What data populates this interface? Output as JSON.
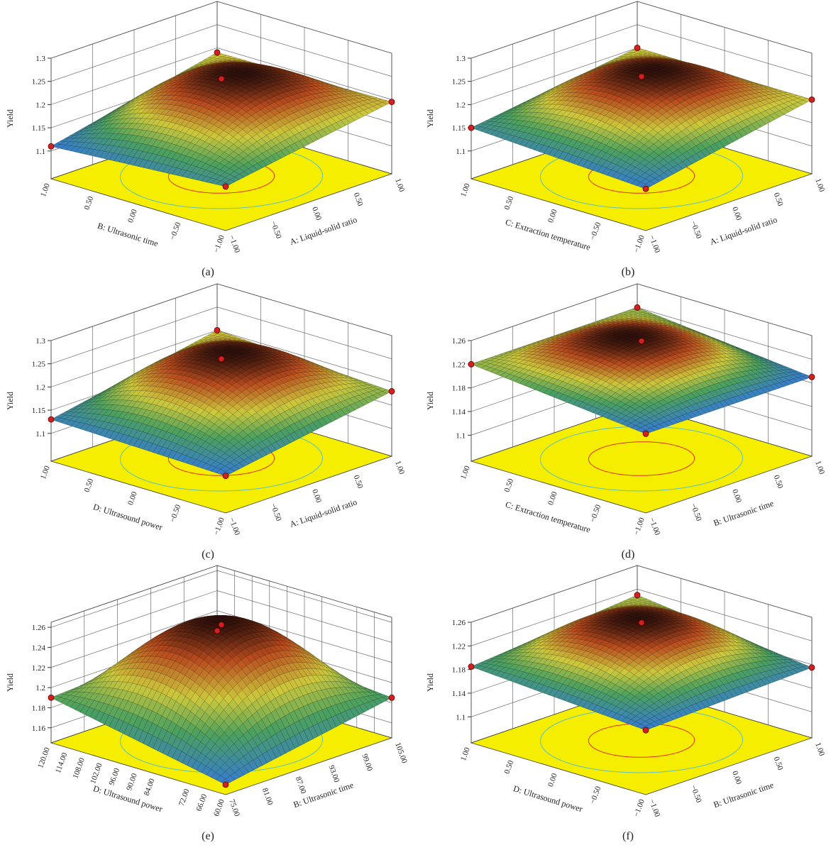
{
  "chart_data": [
    {
      "type": "surface3d",
      "label": "(a)",
      "x_label": "A: Liquid-solid ratio",
      "y_label": "B: Ultrasonic time",
      "z_label": "Yield",
      "xlim": [
        -1,
        1
      ],
      "xticks": [
        {
          "value": -1,
          "label": "−1.00"
        },
        {
          "value": -0.5,
          "label": "−0.50"
        },
        {
          "value": 0,
          "label": "0.00"
        },
        {
          "value": 0.5,
          "label": "0.50"
        },
        {
          "value": 1,
          "label": "1.00"
        }
      ],
      "ylim": [
        -1,
        1
      ],
      "yticks": [
        {
          "value": -1,
          "label": "−1.00"
        },
        {
          "value": -0.5,
          "label": "−0.50"
        },
        {
          "value": 0,
          "label": "0.00"
        },
        {
          "value": 0.5,
          "label": "0.50"
        },
        {
          "value": 1,
          "label": "1.00"
        }
      ],
      "zlim": [
        1.04,
        1.3
      ],
      "zticks": [
        1.1,
        1.15,
        1.2,
        1.25,
        1.3
      ],
      "points": {
        "x": [
          -1,
          -1,
          1,
          1,
          0
        ],
        "y": [
          1,
          -1,
          -1,
          1,
          0
        ],
        "z": [
          1.11,
          1.135,
          1.195,
          1.19,
          1.25
        ]
      }
    },
    {
      "type": "surface3d",
      "label": "(b)",
      "x_label": "A: Liquid-solid ratio",
      "y_label": "C: Extraction temperature",
      "z_label": "Yield",
      "xlim": [
        -1,
        1
      ],
      "xticks": [
        {
          "value": -1,
          "label": "−1.00"
        },
        {
          "value": -0.5,
          "label": "−0.50"
        },
        {
          "value": 0,
          "label": "0.00"
        },
        {
          "value": 0.5,
          "label": "0.50"
        },
        {
          "value": 1,
          "label": "1.00"
        }
      ],
      "ylim": [
        -1,
        1
      ],
      "yticks": [
        {
          "value": -1,
          "label": "−1.00"
        },
        {
          "value": -0.5,
          "label": "−0.50"
        },
        {
          "value": 0,
          "label": "0.00"
        },
        {
          "value": 0.5,
          "label": "0.50"
        },
        {
          "value": 1,
          "label": "1.00"
        }
      ],
      "zlim": [
        1.04,
        1.3
      ],
      "zticks": [
        1.1,
        1.15,
        1.2,
        1.25,
        1.3
      ],
      "points": {
        "x": [
          -1,
          -1,
          1,
          1,
          0
        ],
        "y": [
          1,
          -1,
          -1,
          1,
          0
        ],
        "z": [
          1.15,
          1.13,
          1.2,
          1.2,
          1.255
        ]
      }
    },
    {
      "type": "surface3d",
      "label": "(c)",
      "x_label": "A: Liquid-solid ratio",
      "y_label": "D: Ultrasound power",
      "z_label": "Yield",
      "xlim": [
        -1,
        1
      ],
      "xticks": [
        {
          "value": -1,
          "label": "−1.00"
        },
        {
          "value": -0.5,
          "label": "−0.50"
        },
        {
          "value": 0,
          "label": "0.00"
        },
        {
          "value": 0.5,
          "label": "0.50"
        },
        {
          "value": 1,
          "label": "1.00"
        }
      ],
      "ylim": [
        -1,
        1
      ],
      "yticks": [
        {
          "value": -1,
          "label": "−1.00"
        },
        {
          "value": -0.5,
          "label": "−0.50"
        },
        {
          "value": 0,
          "label": "0.00"
        },
        {
          "value": 0.5,
          "label": "0.50"
        },
        {
          "value": 1,
          "label": "1.00"
        }
      ],
      "zlim": [
        1.04,
        1.3
      ],
      "zticks": [
        1.1,
        1.15,
        1.2,
        1.25,
        1.3
      ],
      "points": {
        "x": [
          -1,
          -1,
          1,
          1,
          0
        ],
        "y": [
          1,
          -1,
          -1,
          1,
          0
        ],
        "z": [
          1.13,
          1.12,
          1.18,
          1.2,
          1.255
        ]
      }
    },
    {
      "type": "surface3d",
      "label": "(d)",
      "x_label": "B: Ultrasonic time",
      "y_label": "C: Extraction temperature",
      "z_label": "Yield",
      "xlim": [
        -1,
        1
      ],
      "xticks": [
        {
          "value": -1,
          "label": "−1.00"
        },
        {
          "value": -0.5,
          "label": "−0.50"
        },
        {
          "value": 0,
          "label": "0.00"
        },
        {
          "value": 0.5,
          "label": "0.50"
        },
        {
          "value": 1,
          "label": "1.00"
        }
      ],
      "ylim": [
        -1,
        1
      ],
      "yticks": [
        {
          "value": -1,
          "label": "−1.00"
        },
        {
          "value": -0.5,
          "label": "−0.50"
        },
        {
          "value": 0,
          "label": "0.00"
        },
        {
          "value": 0.5,
          "label": "0.50"
        },
        {
          "value": 1,
          "label": "1.00"
        }
      ],
      "zlim": [
        1.056,
        1.26
      ],
      "zticks": [
        1.1,
        1.14,
        1.18,
        1.22,
        1.26
      ],
      "points": {
        "x": [
          -1,
          -1,
          1,
          1,
          0
        ],
        "y": [
          1,
          -1,
          -1,
          1,
          0
        ],
        "z": [
          1.22,
          1.19,
          1.19,
          1.22,
          1.255
        ]
      }
    },
    {
      "type": "surface3d",
      "label": "(e)",
      "x_label": "B: Ultrasonic time",
      "y_label": "D: Ultrasound power",
      "z_label": "Yield",
      "xlim": [
        75,
        105
      ],
      "xticks": [
        {
          "value": 75,
          "label": "75.00"
        },
        {
          "value": 81,
          "label": "81.00"
        },
        {
          "value": 87,
          "label": "87.00"
        },
        {
          "value": 93,
          "label": "93.00"
        },
        {
          "value": 99,
          "label": "99.00"
        },
        {
          "value": 105,
          "label": "105.00"
        }
      ],
      "ylim": [
        60,
        120
      ],
      "yticks": [
        {
          "value": 60,
          "label": "60.00"
        },
        {
          "value": 66,
          "label": "66.00"
        },
        {
          "value": 72,
          "label": "72.00"
        },
        {
          "value": 84,
          "label": "84.00"
        },
        {
          "value": 90,
          "label": "90.00"
        },
        {
          "value": 96,
          "label": "96.00"
        },
        {
          "value": 102,
          "label": "102.00"
        },
        {
          "value": 108,
          "label": "108.00"
        },
        {
          "value": 114,
          "label": "114.00"
        },
        {
          "value": 120,
          "label": "120.00"
        }
      ],
      "zlim": [
        1.145,
        1.265
      ],
      "zticks": [
        1.16,
        1.18,
        1.2,
        1.22,
        1.24,
        1.26
      ],
      "points": {
        "x": [
          75,
          75,
          105,
          105,
          90
        ],
        "y": [
          120,
          60,
          60,
          120,
          90
        ],
        "z": [
          1.19,
          1.155,
          1.185,
          1.2,
          1.26
        ]
      }
    },
    {
      "type": "surface3d",
      "label": "(f)",
      "x_label": "B: Ultrasonic time",
      "y_label": "D: Ultrasound power",
      "z_label": "Yield",
      "xlim": [
        -1,
        1
      ],
      "xticks": [
        {
          "value": -1,
          "label": "−1.00"
        },
        {
          "value": -0.5,
          "label": "−0.50"
        },
        {
          "value": 0,
          "label": "0.00"
        },
        {
          "value": 0.5,
          "label": "0.50"
        },
        {
          "value": 1,
          "label": "1.00"
        }
      ],
      "ylim": [
        -1,
        1
      ],
      "yticks": [
        {
          "value": -1,
          "label": "−1.00"
        },
        {
          "value": -0.5,
          "label": "−0.50"
        },
        {
          "value": 0,
          "label": "0.00"
        },
        {
          "value": 0.5,
          "label": "0.50"
        },
        {
          "value": 1,
          "label": "1.00"
        }
      ],
      "zlim": [
        1.056,
        1.26
      ],
      "zticks": [
        1.1,
        1.14,
        1.18,
        1.22,
        1.26
      ],
      "points": {
        "x": [
          -1,
          -1,
          1,
          1,
          0
        ],
        "y": [
          1,
          -1,
          -1,
          1,
          0
        ],
        "z": [
          1.185,
          1.165,
          1.175,
          1.21,
          1.255
        ]
      }
    }
  ]
}
